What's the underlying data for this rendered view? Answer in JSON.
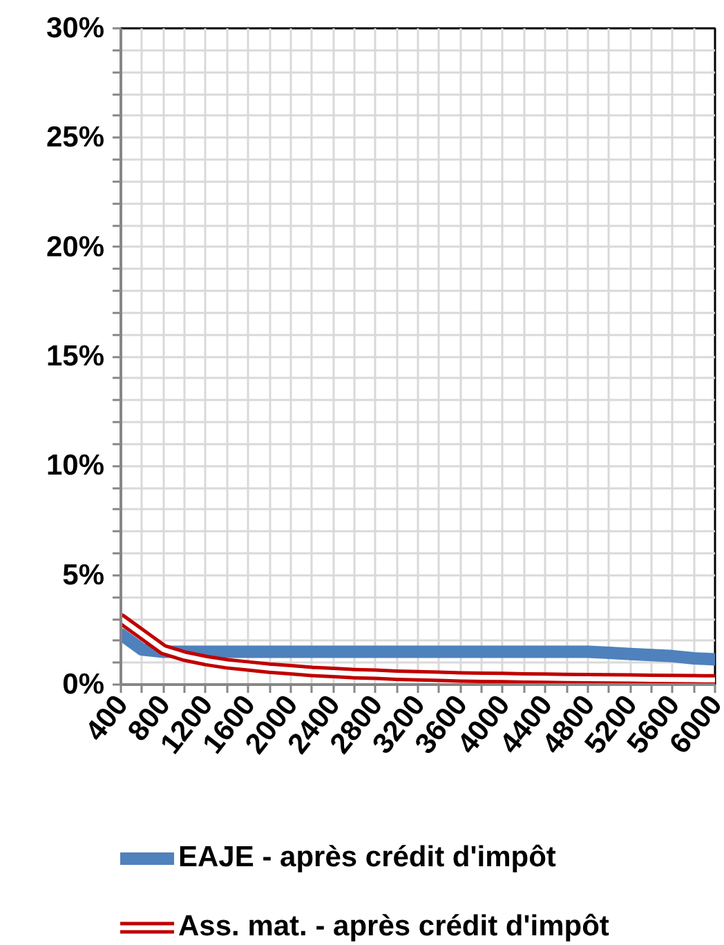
{
  "chart_data": {
    "type": "line",
    "x": [
      400,
      600,
      800,
      1000,
      1200,
      1400,
      1600,
      1800,
      2000,
      2200,
      2400,
      2600,
      2800,
      3000,
      3200,
      3400,
      3600,
      3800,
      4000,
      4200,
      4400,
      4600,
      4800,
      5000,
      5200,
      5400,
      5600,
      5800,
      6000
    ],
    "xlim": [
      400,
      6000
    ],
    "xticks": [
      400,
      {
        "value": 600,
        "label": null
      },
      800,
      {
        "value": 1000,
        "label": null
      },
      1200,
      {
        "value": 1400,
        "label": null
      },
      1600,
      {
        "value": 1800,
        "label": null
      },
      2000,
      {
        "value": 2200,
        "label": null
      },
      2400,
      {
        "value": 2600,
        "label": null
      },
      2800,
      {
        "value": 3000,
        "label": null
      },
      3200,
      {
        "value": 3400,
        "label": null
      },
      3600,
      {
        "value": 3800,
        "label": null
      },
      4000,
      {
        "value": 4200,
        "label": null
      },
      4400,
      {
        "value": 4600,
        "label": null
      },
      4800,
      {
        "value": 5000,
        "label": null
      },
      5200,
      {
        "value": 5400,
        "label": null
      },
      5600,
      {
        "value": 5800,
        "label": null
      },
      6000
    ],
    "ylim": [
      0,
      30
    ],
    "yticks": [
      {
        "value": 0,
        "label": "0%"
      },
      {
        "value": 1,
        "label": null
      },
      {
        "value": 2,
        "label": null
      },
      {
        "value": 3,
        "label": null
      },
      {
        "value": 4,
        "label": null
      },
      {
        "value": 5,
        "label": "5%"
      },
      {
        "value": 6,
        "label": null
      },
      {
        "value": 7,
        "label": null
      },
      {
        "value": 8,
        "label": null
      },
      {
        "value": 9,
        "label": null
      },
      {
        "value": 10,
        "label": "10%"
      },
      {
        "value": 11,
        "label": null
      },
      {
        "value": 12,
        "label": null
      },
      {
        "value": 13,
        "label": null
      },
      {
        "value": 14,
        "label": null
      },
      {
        "value": 15,
        "label": "15%"
      },
      {
        "value": 16,
        "label": null
      },
      {
        "value": 17,
        "label": null
      },
      {
        "value": 18,
        "label": null
      },
      {
        "value": 19,
        "label": null
      },
      {
        "value": 20,
        "label": "20%"
      },
      {
        "value": 21,
        "label": null
      },
      {
        "value": 22,
        "label": null
      },
      {
        "value": 23,
        "label": null
      },
      {
        "value": 24,
        "label": null
      },
      {
        "value": 25,
        "label": "25%"
      },
      {
        "value": 26,
        "label": null
      },
      {
        "value": 27,
        "label": null
      },
      {
        "value": 28,
        "label": null
      },
      {
        "value": 29,
        "label": null
      },
      {
        "value": 30,
        "label": "30%"
      }
    ],
    "grid": true,
    "legend": "bottom",
    "marker": "none",
    "line_style": "solid",
    "series": [
      {
        "name": "EAJE - après crédit d'impôt",
        "color": "#4f81bd",
        "values": [
          2.3,
          1.6,
          1.5,
          1.5,
          1.5,
          1.5,
          1.5,
          1.5,
          1.5,
          1.5,
          1.5,
          1.5,
          1.5,
          1.5,
          1.5,
          1.5,
          1.5,
          1.5,
          1.5,
          1.5,
          1.5,
          1.5,
          1.5,
          1.45,
          1.4,
          1.35,
          1.3,
          1.2,
          1.15
        ]
      },
      {
        "name": "Ass. mat. - après crédit d'impôt",
        "color": "#c00000",
        "values": [
          3.0,
          2.3,
          1.6,
          1.3,
          1.1,
          0.95,
          0.85,
          0.75,
          0.68,
          0.6,
          0.55,
          0.5,
          0.47,
          0.43,
          0.4,
          0.38,
          0.35,
          0.33,
          0.32,
          0.3,
          0.29,
          0.28,
          0.27,
          0.26,
          0.25,
          0.24,
          0.23,
          0.22,
          0.21
        ]
      }
    ]
  }
}
